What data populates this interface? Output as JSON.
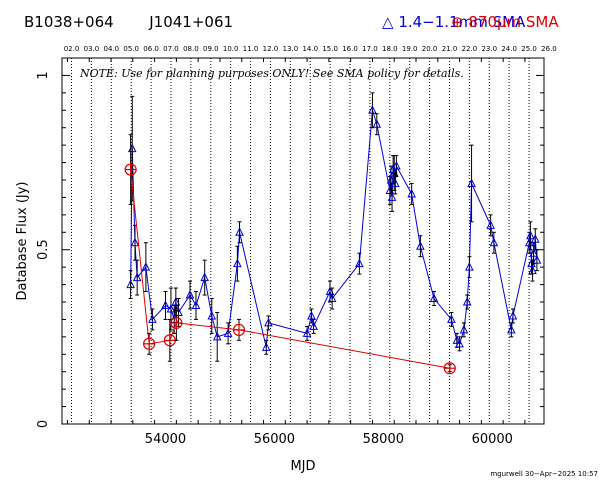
{
  "header": {
    "source_name": "B1038+064",
    "alt_name": "J1041+061",
    "legend_blue": "1.4−1.1mm SMA",
    "legend_red": "870μm SMA"
  },
  "note": "NOTE: Use for planning purposes ONLY! See SMA policy for details.",
  "footer": "mgurwell 30−Apr−2025 10:57",
  "colors": {
    "blue": "#0000dd",
    "red": "#dd0000",
    "grid": "#000000"
  },
  "chart_data": {
    "type": "scatter",
    "xlabel": "MJD",
    "ylabel": "Database Flux (Jy)",
    "xlim": [
      52100,
      60950
    ],
    "ylim": [
      0,
      1.05
    ],
    "x_ticks": [
      54000,
      56000,
      58000,
      60000
    ],
    "x_tick_labels": [
      "54000",
      "56000",
      "58000",
      "60000"
    ],
    "y_ticks": [
      0,
      0.5,
      1
    ],
    "y_tick_labels": [
      "0",
      "0.5",
      "1"
    ],
    "year_ticks": [
      {
        "label": "02.0",
        "mjd": 52275
      },
      {
        "label": "03.0",
        "mjd": 52640
      },
      {
        "label": "04.0",
        "mjd": 53005
      },
      {
        "label": "05.0",
        "mjd": 53371
      },
      {
        "label": "06.0",
        "mjd": 53736
      },
      {
        "label": "07.0",
        "mjd": 54101
      },
      {
        "label": "08.0",
        "mjd": 54466
      },
      {
        "label": "09.0",
        "mjd": 54832
      },
      {
        "label": "10.0",
        "mjd": 55197
      },
      {
        "label": "11.0",
        "mjd": 55562
      },
      {
        "label": "12.0",
        "mjd": 55927
      },
      {
        "label": "13.0",
        "mjd": 56293
      },
      {
        "label": "14.0",
        "mjd": 56658
      },
      {
        "label": "15.0",
        "mjd": 57023
      },
      {
        "label": "16.0",
        "mjd": 57388
      },
      {
        "label": "17.0",
        "mjd": 57754
      },
      {
        "label": "18.0",
        "mjd": 58119
      },
      {
        "label": "19.0",
        "mjd": 58484
      },
      {
        "label": "20.0",
        "mjd": 58849
      },
      {
        "label": "21.0",
        "mjd": 59215
      },
      {
        "label": "22.0",
        "mjd": 59580
      },
      {
        "label": "23.0",
        "mjd": 59945
      },
      {
        "label": "24.0",
        "mjd": 60310
      },
      {
        "label": "25.0",
        "mjd": 60676
      },
      {
        "label": "26.0",
        "mjd": 61041
      }
    ],
    "series": [
      {
        "name": "1.4−1.1mm SMA",
        "color": "#0000dd",
        "marker": "triangle",
        "points": [
          {
            "x": 53360,
            "y": 0.4,
            "err": 0.04
          },
          {
            "x": 53390,
            "y": 0.79,
            "err": 0.15
          },
          {
            "x": 53440,
            "y": 0.52,
            "err": 0.05
          },
          {
            "x": 53480,
            "y": 0.42,
            "err": 0.05
          },
          {
            "x": 53640,
            "y": 0.45,
            "err": 0.07
          },
          {
            "x": 53760,
            "y": 0.3,
            "err": 0.03
          },
          {
            "x": 54000,
            "y": 0.34,
            "err": 0.04
          },
          {
            "x": 54100,
            "y": 0.33,
            "err": 0.06
          },
          {
            "x": 54160,
            "y": 0.3,
            "err": 0.04
          },
          {
            "x": 54190,
            "y": 0.35,
            "err": 0.04
          },
          {
            "x": 54240,
            "y": 0.32,
            "err": 0.04
          },
          {
            "x": 54450,
            "y": 0.37,
            "err": 0.04
          },
          {
            "x": 54560,
            "y": 0.34,
            "err": 0.04
          },
          {
            "x": 54720,
            "y": 0.42,
            "err": 0.05
          },
          {
            "x": 54850,
            "y": 0.31,
            "err": 0.05
          },
          {
            "x": 54950,
            "y": 0.25,
            "err": 0.07
          },
          {
            "x": 55150,
            "y": 0.26,
            "err": 0.03
          },
          {
            "x": 55320,
            "y": 0.46,
            "err": 0.05
          },
          {
            "x": 55360,
            "y": 0.55,
            "err": 0.03
          },
          {
            "x": 55850,
            "y": 0.22,
            "err": 0.02
          },
          {
            "x": 55890,
            "y": 0.29,
            "err": 0.02
          },
          {
            "x": 56600,
            "y": 0.26,
            "err": 0.02
          },
          {
            "x": 56680,
            "y": 0.31,
            "err": 0.02
          },
          {
            "x": 56720,
            "y": 0.28,
            "err": 0.02
          },
          {
            "x": 57020,
            "y": 0.38,
            "err": 0.03
          },
          {
            "x": 57060,
            "y": 0.36,
            "err": 0.03
          },
          {
            "x": 57560,
            "y": 0.46,
            "err": 0.03
          },
          {
            "x": 57800,
            "y": 0.9,
            "err": 0.05
          },
          {
            "x": 57880,
            "y": 0.86,
            "err": 0.03
          },
          {
            "x": 58120,
            "y": 0.67,
            "err": 0.04
          },
          {
            "x": 58140,
            "y": 0.7,
            "err": 0.04
          },
          {
            "x": 58160,
            "y": 0.65,
            "err": 0.04
          },
          {
            "x": 58180,
            "y": 0.73,
            "err": 0.04
          },
          {
            "x": 58200,
            "y": 0.72,
            "err": 0.05
          },
          {
            "x": 58220,
            "y": 0.69,
            "err": 0.03
          },
          {
            "x": 58240,
            "y": 0.74,
            "err": 0.03
          },
          {
            "x": 58520,
            "y": 0.66,
            "err": 0.03
          },
          {
            "x": 58680,
            "y": 0.51,
            "err": 0.03
          },
          {
            "x": 58930,
            "y": 0.36,
            "err": 0.02
          },
          {
            "x": 59250,
            "y": 0.3,
            "err": 0.02
          },
          {
            "x": 59350,
            "y": 0.24,
            "err": 0.02
          },
          {
            "x": 59400,
            "y": 0.23,
            "err": 0.02
          },
          {
            "x": 59480,
            "y": 0.27,
            "err": 0.02
          },
          {
            "x": 59540,
            "y": 0.35,
            "err": 0.02
          },
          {
            "x": 59580,
            "y": 0.45,
            "err": 0.03
          },
          {
            "x": 59620,
            "y": 0.69,
            "err": 0.11
          },
          {
            "x": 59970,
            "y": 0.57,
            "err": 0.03
          },
          {
            "x": 60030,
            "y": 0.52,
            "err": 0.03
          },
          {
            "x": 60350,
            "y": 0.27,
            "err": 0.02
          },
          {
            "x": 60380,
            "y": 0.31,
            "err": 0.02
          },
          {
            "x": 60680,
            "y": 0.52,
            "err": 0.03
          },
          {
            "x": 60700,
            "y": 0.54,
            "err": 0.04
          },
          {
            "x": 60720,
            "y": 0.46,
            "err": 0.03
          },
          {
            "x": 60740,
            "y": 0.44,
            "err": 0.03
          },
          {
            "x": 60760,
            "y": 0.49,
            "err": 0.03
          },
          {
            "x": 60790,
            "y": 0.53,
            "err": 0.03
          },
          {
            "x": 60820,
            "y": 0.47,
            "err": 0.03
          }
        ]
      },
      {
        "name": "870μm SMA",
        "color": "#dd0000",
        "marker": "circle-plus",
        "points": [
          {
            "x": 53360,
            "y": 0.73,
            "err": 0.1
          },
          {
            "x": 53700,
            "y": 0.23,
            "err": 0.03
          },
          {
            "x": 54080,
            "y": 0.24,
            "err": 0.06
          },
          {
            "x": 54200,
            "y": 0.29,
            "err": 0.05
          },
          {
            "x": 55350,
            "y": 0.27,
            "err": 0.03
          },
          {
            "x": 59220,
            "y": 0.16,
            "err": 0.01
          }
        ]
      }
    ]
  }
}
